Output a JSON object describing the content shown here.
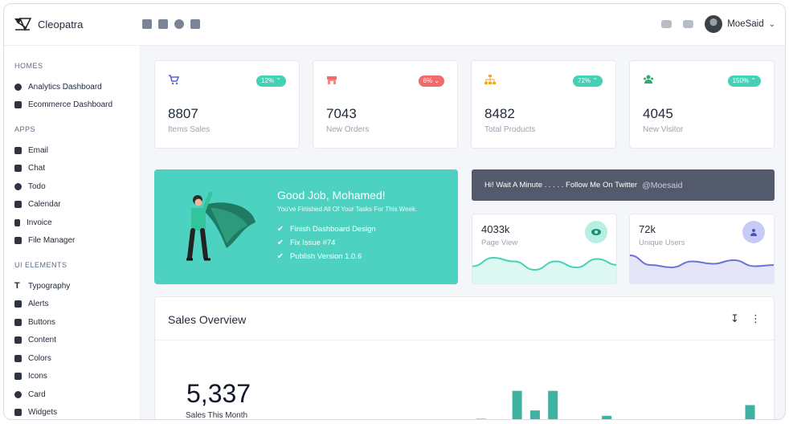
{
  "header": {
    "app_name": "Cleopatra",
    "left_icons": [
      "inbox-icon",
      "chat-icon",
      "check-icon",
      "calendar-icon"
    ],
    "right_icons": [
      "messages-icon",
      "notifications-icon"
    ],
    "user_name": "MoeSaid"
  },
  "sidebar": {
    "sections": [
      {
        "title": "HOMES",
        "items": [
          {
            "label": "Analytics Dashboard",
            "icon": "chart-pie-icon"
          },
          {
            "label": "Ecommerce Dashboard",
            "icon": "cart-icon"
          }
        ]
      },
      {
        "title": "APPS",
        "items": [
          {
            "label": "Email",
            "icon": "envelope-icon"
          },
          {
            "label": "Chat",
            "icon": "chat-icon"
          },
          {
            "label": "Todo",
            "icon": "check-circle-icon"
          },
          {
            "label": "Calendar",
            "icon": "calendar-icon"
          },
          {
            "label": "Invoice",
            "icon": "file-invoice-icon"
          },
          {
            "label": "File Manager",
            "icon": "folder-icon"
          }
        ]
      },
      {
        "title": "UI ELEMENTS",
        "items": [
          {
            "label": "Typography",
            "icon": "text-icon"
          },
          {
            "label": "Alerts",
            "icon": "bell-icon"
          },
          {
            "label": "Buttons",
            "icon": "hand-pointer-icon"
          },
          {
            "label": "Content",
            "icon": "grip-icon"
          },
          {
            "label": "Colors",
            "icon": "swatch-icon"
          },
          {
            "label": "Icons",
            "icon": "icons-icon"
          },
          {
            "label": "Card",
            "icon": "card-icon"
          },
          {
            "label": "Widgets",
            "icon": "widgets-icon"
          }
        ]
      }
    ]
  },
  "stats": [
    {
      "value": "8807",
      "label": "Items Sales",
      "badge": "12%",
      "trend": "up",
      "color": "#5a63d6",
      "icon": "cart-icon"
    },
    {
      "value": "7043",
      "label": "New Orders",
      "badge": "6%",
      "trend": "down",
      "color": "#f26b6b",
      "icon": "store-icon"
    },
    {
      "value": "8482",
      "label": "Total Products",
      "badge": "72%",
      "trend": "up",
      "color": "#f5a623",
      "icon": "sitemap-icon"
    },
    {
      "value": "4045",
      "label": "New Visitor",
      "badge": "150%",
      "trend": "up",
      "color": "#2eab73",
      "icon": "users-icon"
    }
  ],
  "hero": {
    "title": "Good Job, Mohamed!",
    "subtitle": "You've Finished All Of Your Tasks For This Week.",
    "tasks": [
      "Finish Dashboard Design",
      "Fix Issue #74",
      "Publish Version 1.0.6"
    ]
  },
  "twitter": {
    "text": "Hi! Wait A Minute . . . . . Follow Me On Twitter",
    "handle": "@Moesaid"
  },
  "mini_cards": [
    {
      "value": "4033k",
      "label": "Page View",
      "icon": "eye-icon",
      "accent": "#45d1b5",
      "wave": [
        0.55,
        0.2,
        0.35,
        0.7,
        0.35,
        0.6,
        0.25,
        0.5
      ]
    },
    {
      "value": "72k",
      "label": "Unique Users",
      "icon": "users-icon",
      "accent": "#6b73d6",
      "wave": [
        0.1,
        0.5,
        0.6,
        0.35,
        0.45,
        0.3,
        0.55,
        0.5
      ]
    }
  ],
  "sales_overview": {
    "title": "Sales Overview",
    "total": "5,337",
    "total_label": "Sales This Month",
    "bars": [
      0.25,
      0.0,
      0.72,
      0.39,
      0.72,
      0.0,
      0.0,
      0.3,
      0.0,
      0.0,
      0.11,
      0.0,
      0.11,
      0.16,
      0.0,
      0.48
    ]
  }
}
